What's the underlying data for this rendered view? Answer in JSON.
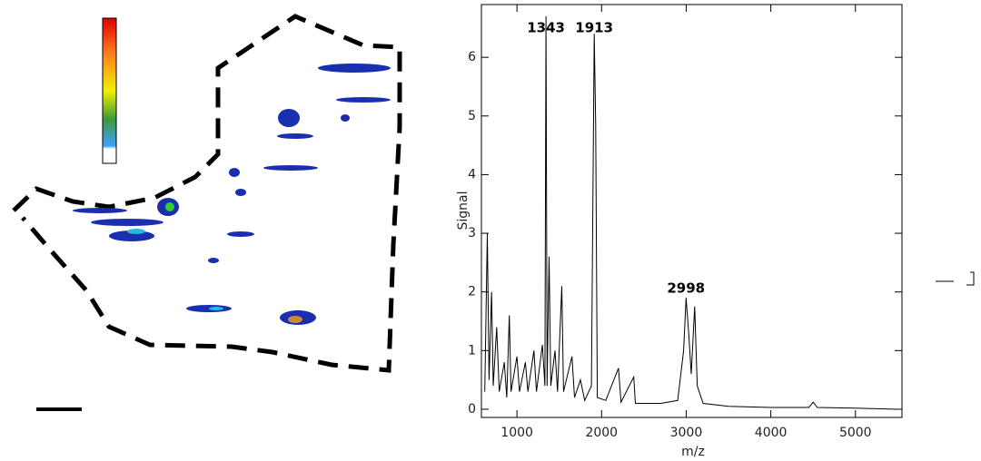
{
  "chart_data": {
    "type": "line",
    "xlabel": "m/z",
    "ylabel": "Signal",
    "color": "#000000",
    "x": [
      620,
      650,
      670,
      700,
      720,
      760,
      790,
      850,
      880,
      910,
      930,
      1000,
      1030,
      1100,
      1130,
      1200,
      1230,
      1300,
      1330,
      1343,
      1356,
      1380,
      1400,
      1450,
      1480,
      1530,
      1550,
      1650,
      1680,
      1750,
      1800,
      1880,
      1913,
      1930,
      1950,
      2050,
      2200,
      2230,
      2380,
      2400,
      2700,
      2900,
      2970,
      2998,
      3030,
      3060,
      3100,
      3130,
      3200,
      3500,
      4000,
      4450,
      4500,
      4550,
      5000,
      5500
    ],
    "values": [
      0.3,
      3.0,
      0.5,
      2.0,
      0.4,
      1.4,
      0.3,
      0.8,
      0.2,
      1.6,
      0.3,
      0.9,
      0.3,
      0.8,
      0.3,
      1.0,
      0.3,
      1.1,
      0.4,
      6.7,
      0.4,
      2.6,
      0.4,
      1.0,
      0.3,
      2.1,
      0.3,
      0.9,
      0.2,
      0.5,
      0.15,
      0.4,
      6.4,
      4.85,
      0.2,
      0.15,
      0.7,
      0.12,
      0.55,
      0.1,
      0.1,
      0.15,
      1.0,
      1.9,
      1.3,
      0.6,
      1.75,
      0.4,
      0.1,
      0.05,
      0.03,
      0.03,
      0.12,
      0.03,
      0.02,
      0.0
    ],
    "peak_labels": [
      1343,
      1913,
      2998
    ],
    "xlim": [
      580,
      5550
    ],
    "ylim": [
      -0.14,
      6.9
    ],
    "xticks": [
      1000,
      2000,
      3000,
      4000,
      5000
    ],
    "yticks": [
      0,
      1,
      2,
      3,
      4,
      5,
      6
    ]
  }
}
